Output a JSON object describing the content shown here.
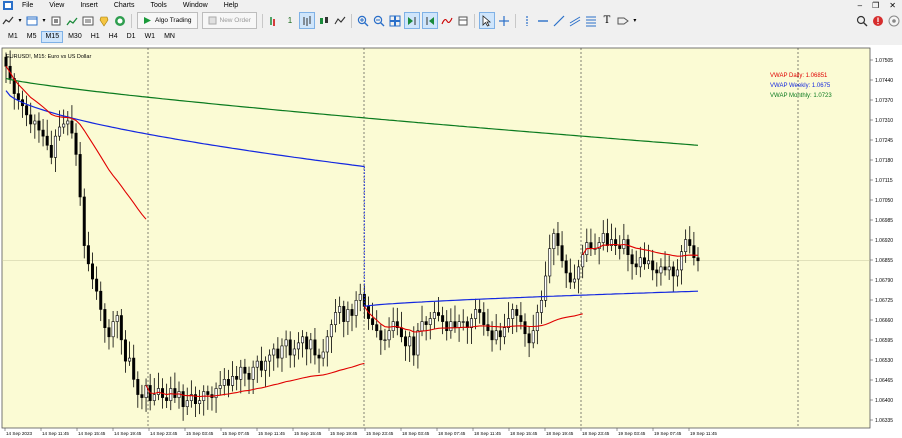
{
  "menu": [
    "File",
    "View",
    "Insert",
    "Charts",
    "Tools",
    "Window",
    "Help"
  ],
  "toolbar": {
    "algo_trading": "Algo Trading",
    "new_order": "New Order",
    "one_click": "1"
  },
  "timeframes": [
    {
      "label": "M1"
    },
    {
      "label": "M5"
    },
    {
      "label": "M15",
      "active": true
    },
    {
      "label": "M30"
    },
    {
      "label": "H1"
    },
    {
      "label": "H4"
    },
    {
      "label": "D1"
    },
    {
      "label": "W1"
    },
    {
      "label": "MN"
    }
  ],
  "colors": {
    "chart_bg": "#fbfbd4",
    "candle": "#000000",
    "vwap_daily": "#e00000",
    "vwap_weekly": "#1428e0",
    "vwap_monthly": "#0a7a1e",
    "grid_line": "#c8c8a0"
  },
  "chart": {
    "title": "EURUSD!, M15: Euro vs US Dollar",
    "legend": [
      {
        "label": "VWAP Daily: 1.06851",
        "color": "#e00000"
      },
      {
        "label": "VWAP Weekly: 1.0675",
        "color": "#1428e0"
      },
      {
        "label": "VWAP Monthly: 1.0723",
        "color": "#0a7a1e"
      }
    ],
    "price_labels": [
      "1.07505",
      "1.07440",
      "1.07370",
      "1.07310",
      "1.07245",
      "1.07180",
      "1.07115",
      "1.07050",
      "1.06985",
      "1.06920",
      "1.06855",
      "1.06790",
      "1.06725",
      "1.06660",
      "1.06595",
      "1.06530",
      "1.06465",
      "1.06400",
      "1.06335"
    ],
    "time_labels": [
      "14 Sep 2023",
      "14 Sep 11:45",
      "14 Sep 15:45",
      "14 Sep 19:45",
      "14 Sep 23:45",
      "15 Sep 03:45",
      "15 Sep 07:45",
      "15 Sep 11:45",
      "15 Sep 15:45",
      "15 Sep 19:45",
      "15 Sep 23:45",
      "18 Sep 03:45",
      "18 Sep 07:45",
      "18 Sep 11:45",
      "18 Sep 15:45",
      "18 Sep 19:45",
      "18 Sep 23:45",
      "19 Sep 03:45",
      "19 Sep 07:45",
      "19 Sep 11:45"
    ]
  },
  "chart_data": {
    "type": "candlestick",
    "symbol": "EURUSD!",
    "timeframe": "M15",
    "ylim": [
      1.063,
      1.0755
    ],
    "candles_close": [
      1.0749,
      1.0745,
      1.074,
      1.0738,
      1.0736,
      1.0733,
      1.073,
      1.0731,
      1.0728,
      1.0726,
      1.0723,
      1.0719,
      1.0726,
      1.0729,
      1.073,
      1.0731,
      1.0727,
      1.072,
      1.0706,
      1.069,
      1.0684,
      1.0679,
      1.0675,
      1.0669,
      1.0663,
      1.066,
      1.0665,
      1.0667,
      1.0659,
      1.0652,
      1.0653,
      1.0646,
      1.0641,
      1.064,
      1.0644,
      1.0639,
      1.0641,
      1.0643,
      1.064,
      1.0639,
      1.0643,
      1.064,
      1.0642,
      1.0637,
      1.0639,
      1.0641,
      1.0638,
      1.0639,
      1.0642,
      1.0641,
      1.064,
      1.0643,
      1.0644,
      1.0646,
      1.0644,
      1.0647,
      1.0646,
      1.065,
      1.0648,
      1.0646,
      1.065,
      1.0652,
      1.0649,
      1.0652,
      1.0654,
      1.0656,
      1.0653,
      1.0657,
      1.0659,
      1.0654,
      1.0656,
      1.0658,
      1.066,
      1.0656,
      1.0659,
      1.0654,
      1.0653,
      1.0655,
      1.066,
      1.0664,
      1.0668,
      1.067,
      1.0665,
      1.0669,
      1.0667,
      1.0672,
      1.0674,
      1.067,
      1.0666,
      1.0664,
      1.0662,
      1.0659,
      1.0659,
      1.0662,
      1.0665,
      1.0663,
      1.066,
      1.0657,
      1.066,
      1.0654,
      1.0662,
      1.0665,
      1.0664,
      1.0666,
      1.0668,
      1.0667,
      1.0665,
      1.0662,
      1.0665,
      1.0663,
      1.0665,
      1.0665,
      1.0663,
      1.0666,
      1.0669,
      1.0668,
      1.0664,
      1.0662,
      1.0659,
      1.0662,
      1.066,
      1.0663,
      1.0666,
      1.0669,
      1.0667,
      1.0665,
      1.0661,
      1.0658,
      1.0662,
      1.0668,
      1.0672,
      1.068,
      1.0689,
      1.0694,
      1.069,
      1.0685,
      1.0681,
      1.0678,
      1.0679,
      1.0683,
      1.0687,
      1.0691,
      1.0689,
      1.0689,
      1.0691,
      1.0694,
      1.069,
      1.0692,
      1.069,
      1.0689,
      1.0692,
      1.0687,
      1.0684,
      1.0683,
      1.0686,
      1.0684,
      1.0685,
      1.0682,
      1.0681,
      1.0683,
      1.0682,
      1.0683,
      1.068,
      1.0682,
      1.0688,
      1.0692,
      1.069,
      1.0686,
      1.0685
    ],
    "vwap_daily_end": 1.06851,
    "vwap_weekly_end": 1.0675,
    "vwap_monthly_end": 1.0723
  }
}
